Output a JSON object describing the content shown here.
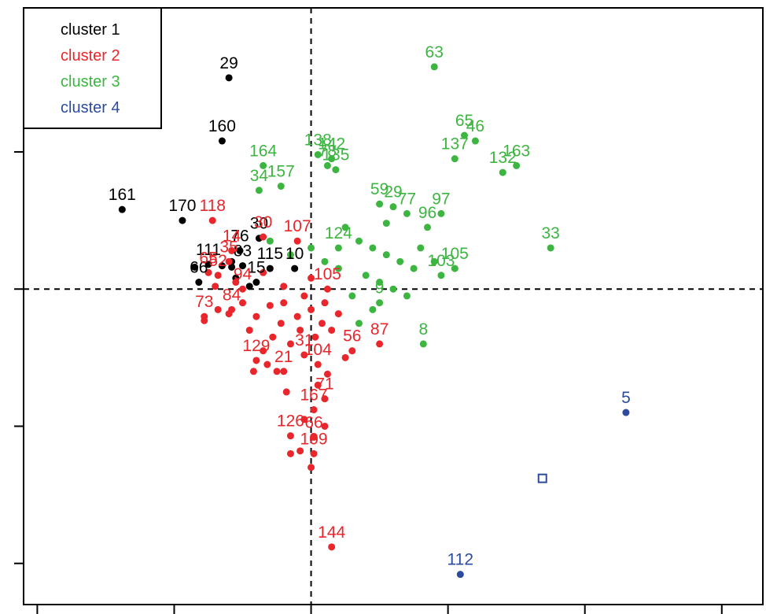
{
  "chart_data": {
    "type": "scatter",
    "title": "",
    "xlabel": "",
    "ylabel": "",
    "xlim": [
      -2.1,
      3.3
    ],
    "ylim": [
      -2.3,
      2.05
    ],
    "grid": false,
    "reference_lines": {
      "x": 0,
      "y": 0
    },
    "legend": {
      "position": "top-left",
      "entries": [
        {
          "label": "cluster 1",
          "color": "#000000"
        },
        {
          "label": "cluster 2",
          "color": "#e8262b"
        },
        {
          "label": "cluster 3",
          "color": "#3db541"
        },
        {
          "label": "cluster 4",
          "color": "#2c4b9e"
        }
      ]
    },
    "series": [
      {
        "name": "cluster 1",
        "color": "#000000",
        "points": [
          {
            "label": "29",
            "x": -0.6,
            "y": 1.54
          },
          {
            "label": "160",
            "x": -0.65,
            "y": 1.08
          },
          {
            "label": "161",
            "x": -1.38,
            "y": 0.58
          },
          {
            "label": "170",
            "x": -0.94,
            "y": 0.5
          },
          {
            "label": "30",
            "x": -0.38,
            "y": 0.37
          },
          {
            "label": "76",
            "x": -0.52,
            "y": 0.28
          },
          {
            "label": "111",
            "x": -0.75,
            "y": 0.18
          },
          {
            "label": "83",
            "x": -0.5,
            "y": 0.17
          },
          {
            "label": "115",
            "x": -0.3,
            "y": 0.15
          },
          {
            "label": "10",
            "x": -0.12,
            "y": 0.15
          },
          {
            "label": "66",
            "x": -0.82,
            "y": 0.05
          },
          {
            "label": "15",
            "x": -0.4,
            "y": 0.05
          }
        ],
        "unlabeled_points": [
          {
            "x": -0.85,
            "y": 0.16
          },
          {
            "x": -0.58,
            "y": 0.16
          },
          {
            "x": -0.58,
            "y": 0.2
          },
          {
            "x": -0.55,
            "y": 0.08
          },
          {
            "x": -0.45,
            "y": 0.02
          },
          {
            "x": -0.65,
            "y": 0.17
          }
        ]
      },
      {
        "name": "cluster 2",
        "color": "#e8262b",
        "points": [
          {
            "label": "118",
            "x": -0.72,
            "y": 0.5
          },
          {
            "label": "30",
            "x": -0.35,
            "y": 0.38
          },
          {
            "label": "14",
            "x": -0.58,
            "y": 0.28
          },
          {
            "label": "107",
            "x": -0.1,
            "y": 0.35
          },
          {
            "label": "35",
            "x": -0.6,
            "y": 0.2
          },
          {
            "label": "65",
            "x": -0.75,
            "y": 0.12
          },
          {
            "label": "52",
            "x": -0.68,
            "y": 0.1
          },
          {
            "label": "94",
            "x": -0.5,
            "y": 0.0
          },
          {
            "label": "105",
            "x": 0.12,
            "y": 0.0
          },
          {
            "label": "73",
            "x": -0.78,
            "y": -0.2
          },
          {
            "label": "84",
            "x": -0.58,
            "y": -0.15
          },
          {
            "label": "87",
            "x": 0.5,
            "y": -0.4
          },
          {
            "label": "56",
            "x": 0.3,
            "y": -0.45
          },
          {
            "label": "129",
            "x": -0.4,
            "y": -0.52
          },
          {
            "label": "31",
            "x": -0.05,
            "y": -0.48
          },
          {
            "label": "104",
            "x": 0.05,
            "y": -0.55
          },
          {
            "label": "21",
            "x": -0.2,
            "y": -0.6
          },
          {
            "label": "71",
            "x": 0.1,
            "y": -0.8
          },
          {
            "label": "167",
            "x": 0.02,
            "y": -0.88
          },
          {
            "label": "126",
            "x": -0.15,
            "y": -1.07
          },
          {
            "label": "66",
            "x": 0.02,
            "y": -1.08
          },
          {
            "label": "109",
            "x": 0.02,
            "y": -1.2
          },
          {
            "label": "144",
            "x": 0.15,
            "y": -1.88
          }
        ],
        "unlabeled_points": [
          {
            "x": -0.78,
            "y": -0.23
          },
          {
            "x": -0.68,
            "y": -0.15
          },
          {
            "x": -0.6,
            "y": -0.18
          },
          {
            "x": -0.5,
            "y": -0.1
          },
          {
            "x": -0.45,
            "y": -0.3
          },
          {
            "x": -0.4,
            "y": -0.2
          },
          {
            "x": -0.35,
            "y": -0.45
          },
          {
            "x": -0.3,
            "y": -0.12
          },
          {
            "x": -0.28,
            "y": -0.35
          },
          {
            "x": -0.25,
            "y": -0.6
          },
          {
            "x": -0.22,
            "y": -0.25
          },
          {
            "x": -0.2,
            "y": -0.1
          },
          {
            "x": -0.15,
            "y": -0.4
          },
          {
            "x": -0.1,
            "y": -0.2
          },
          {
            "x": -0.08,
            "y": -0.3
          },
          {
            "x": -0.05,
            "y": -0.05
          },
          {
            "x": 0.0,
            "y": -0.15
          },
          {
            "x": 0.03,
            "y": -0.35
          },
          {
            "x": 0.08,
            "y": -0.25
          },
          {
            "x": 0.1,
            "y": -0.1
          },
          {
            "x": 0.15,
            "y": -0.3
          },
          {
            "x": 0.2,
            "y": -0.18
          },
          {
            "x": 0.25,
            "y": -0.5
          },
          {
            "x": -0.18,
            "y": -0.75
          },
          {
            "x": 0.05,
            "y": -0.7
          },
          {
            "x": -0.05,
            "y": -0.95
          },
          {
            "x": 0.1,
            "y": -1.0
          },
          {
            "x": -0.15,
            "y": -1.2
          },
          {
            "x": -0.08,
            "y": -1.18
          },
          {
            "x": 0.0,
            "y": -1.3
          },
          {
            "x": -0.55,
            "y": 0.05
          },
          {
            "x": -0.35,
            "y": 0.12
          },
          {
            "x": -0.2,
            "y": 0.02
          },
          {
            "x": 0.0,
            "y": 0.08
          },
          {
            "x": -0.7,
            "y": 0.02
          },
          {
            "x": -0.42,
            "y": -0.6
          },
          {
            "x": -0.32,
            "y": -0.55
          },
          {
            "x": 0.12,
            "y": -0.62
          }
        ]
      },
      {
        "name": "cluster 3",
        "color": "#3db541",
        "points": [
          {
            "label": "63",
            "x": 0.9,
            "y": 1.62
          },
          {
            "label": "65",
            "x": 1.12,
            "y": 1.12
          },
          {
            "label": "46",
            "x": 1.2,
            "y": 1.08
          },
          {
            "label": "137",
            "x": 1.05,
            "y": 0.95
          },
          {
            "label": "163",
            "x": 1.5,
            "y": 0.9
          },
          {
            "label": "132",
            "x": 1.4,
            "y": 0.85
          },
          {
            "label": "138",
            "x": 0.05,
            "y": 0.98
          },
          {
            "label": "142",
            "x": 0.15,
            "y": 0.95
          },
          {
            "label": "78",
            "x": 0.12,
            "y": 0.9
          },
          {
            "label": "135",
            "x": 0.18,
            "y": 0.87
          },
          {
            "label": "164",
            "x": -0.35,
            "y": 0.9
          },
          {
            "label": "157",
            "x": -0.22,
            "y": 0.75
          },
          {
            "label": "34",
            "x": -0.38,
            "y": 0.72
          },
          {
            "label": "59",
            "x": 0.5,
            "y": 0.62
          },
          {
            "label": "29",
            "x": 0.6,
            "y": 0.6
          },
          {
            "label": "77",
            "x": 0.7,
            "y": 0.55
          },
          {
            "label": "97",
            "x": 0.95,
            "y": 0.55
          },
          {
            "label": "96",
            "x": 0.85,
            "y": 0.45
          },
          {
            "label": "33",
            "x": 1.75,
            "y": 0.3
          },
          {
            "label": "105",
            "x": 1.05,
            "y": 0.15
          },
          {
            "label": "103",
            "x": 0.95,
            "y": 0.1
          },
          {
            "label": "8",
            "x": 0.82,
            "y": -0.4
          },
          {
            "label": "9",
            "x": 0.5,
            "y": -0.1
          },
          {
            "label": "124",
            "x": 0.2,
            "y": 0.3
          }
        ],
        "unlabeled_points": [
          {
            "x": 0.25,
            "y": 0.45
          },
          {
            "x": 0.35,
            "y": 0.35
          },
          {
            "x": 0.45,
            "y": 0.3
          },
          {
            "x": 0.55,
            "y": 0.25
          },
          {
            "x": 0.65,
            "y": 0.2
          },
          {
            "x": 0.75,
            "y": 0.15
          },
          {
            "x": 0.4,
            "y": 0.1
          },
          {
            "x": 0.5,
            "y": 0.05
          },
          {
            "x": 0.6,
            "y": 0.0
          },
          {
            "x": 0.3,
            "y": -0.05
          },
          {
            "x": 0.45,
            "y": -0.15
          },
          {
            "x": 0.7,
            "y": -0.05
          },
          {
            "x": 0.35,
            "y": -0.25
          },
          {
            "x": 0.2,
            "y": 0.15
          },
          {
            "x": 0.1,
            "y": 0.2
          },
          {
            "x": -0.3,
            "y": 0.35
          },
          {
            "x": -0.15,
            "y": 0.25
          },
          {
            "x": 0.0,
            "y": 0.3
          },
          {
            "x": 0.55,
            "y": 0.48
          },
          {
            "x": 0.8,
            "y": 0.3
          },
          {
            "x": 0.9,
            "y": 0.2
          }
        ]
      },
      {
        "name": "cluster 4",
        "color": "#2c4b9e",
        "points": [
          {
            "label": "5",
            "x": 2.3,
            "y": -0.9
          },
          {
            "label": "112",
            "x": 1.09,
            "y": -2.08
          }
        ],
        "unlabeled_points": []
      }
    ],
    "centroid": {
      "x": 1.69,
      "y": -1.38,
      "color": "#2c4b9e"
    }
  }
}
